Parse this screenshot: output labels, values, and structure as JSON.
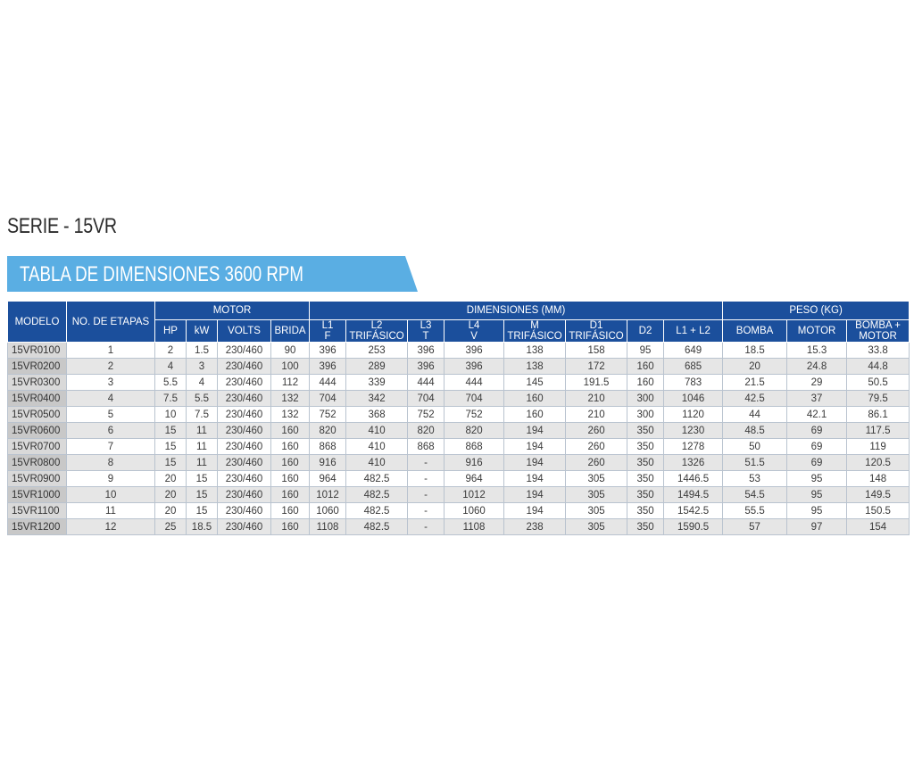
{
  "serie_title": "SERIE - 15VR",
  "banner_title": "TABLA DE DIMENSIONES 3600 RPM",
  "header": {
    "modelo": "MODELO",
    "etapas": "NO. DE ETAPAS",
    "motor": "MOTOR",
    "dimensiones": "DIMENSIONES (MM)",
    "peso": "PESO (KG)",
    "hp": "HP",
    "kw": "kW",
    "volts": "VOLTS",
    "brida": "BRIDA",
    "l1": "L1",
    "l1_sub": "F",
    "l2": "L2",
    "l2_sub": "TRIFÁSICO",
    "l3": "L3",
    "l3_sub": "T",
    "l4": "L4",
    "l4_sub": "V",
    "m": "M",
    "m_sub": "TRIFÁSICO",
    "d1": "D1",
    "d1_sub": "TRIFÁSICO",
    "d2": "D2",
    "l1l2": "L1 + L2",
    "bomba": "BOMBA",
    "motor_w": "MOTOR",
    "bomba_motor_1": "BOMBA +",
    "bomba_motor_2": "MOTOR"
  },
  "rows": [
    [
      "15VR0100",
      "1",
      "2",
      "1.5",
      "230/460",
      "90",
      "396",
      "253",
      "396",
      "396",
      "138",
      "158",
      "95",
      "649",
      "18.5",
      "15.3",
      "33.8"
    ],
    [
      "15VR0200",
      "2",
      "4",
      "3",
      "230/460",
      "100",
      "396",
      "289",
      "396",
      "396",
      "138",
      "172",
      "160",
      "685",
      "20",
      "24.8",
      "44.8"
    ],
    [
      "15VR0300",
      "3",
      "5.5",
      "4",
      "230/460",
      "112",
      "444",
      "339",
      "444",
      "444",
      "145",
      "191.5",
      "160",
      "783",
      "21.5",
      "29",
      "50.5"
    ],
    [
      "15VR0400",
      "4",
      "7.5",
      "5.5",
      "230/460",
      "132",
      "704",
      "342",
      "704",
      "704",
      "160",
      "210",
      "300",
      "1046",
      "42.5",
      "37",
      "79.5"
    ],
    [
      "15VR0500",
      "5",
      "10",
      "7.5",
      "230/460",
      "132",
      "752",
      "368",
      "752",
      "752",
      "160",
      "210",
      "300",
      "1120",
      "44",
      "42.1",
      "86.1"
    ],
    [
      "15VR0600",
      "6",
      "15",
      "11",
      "230/460",
      "160",
      "820",
      "410",
      "820",
      "820",
      "194",
      "260",
      "350",
      "1230",
      "48.5",
      "69",
      "117.5"
    ],
    [
      "15VR0700",
      "7",
      "15",
      "11",
      "230/460",
      "160",
      "868",
      "410",
      "868",
      "868",
      "194",
      "260",
      "350",
      "1278",
      "50",
      "69",
      "119"
    ],
    [
      "15VR0800",
      "8",
      "15",
      "11",
      "230/460",
      "160",
      "916",
      "410",
      "-",
      "916",
      "194",
      "260",
      "350",
      "1326",
      "51.5",
      "69",
      "120.5"
    ],
    [
      "15VR0900",
      "9",
      "20",
      "15",
      "230/460",
      "160",
      "964",
      "482.5",
      "-",
      "964",
      "194",
      "305",
      "350",
      "1446.5",
      "53",
      "95",
      "148"
    ],
    [
      "15VR1000",
      "10",
      "20",
      "15",
      "230/460",
      "160",
      "1012",
      "482.5",
      "-",
      "1012",
      "194",
      "305",
      "350",
      "1494.5",
      "54.5",
      "95",
      "149.5"
    ],
    [
      "15VR1100",
      "11",
      "20",
      "15",
      "230/460",
      "160",
      "1060",
      "482.5",
      "-",
      "1060",
      "194",
      "305",
      "350",
      "1542.5",
      "55.5",
      "95",
      "150.5"
    ],
    [
      "15VR1200",
      "12",
      "25",
      "18.5",
      "230/460",
      "160",
      "1108",
      "482.5",
      "-",
      "1108",
      "238",
      "305",
      "350",
      "1590.5",
      "57",
      "97",
      "154"
    ]
  ]
}
